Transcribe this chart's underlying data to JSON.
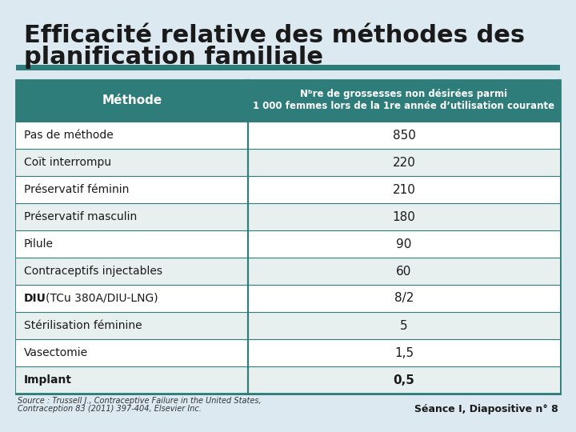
{
  "title_line1": "Efficacité relative des méthodes des",
  "title_line2": "planification familiale",
  "bg_color": "#dce9f0",
  "teal_bar_color": "#2e7d7a",
  "header_bg": "#2e7d7a",
  "header_text_color": "#ffffff",
  "col1_header": "Méthode",
  "col2_header_line1": "Nᵇre de grossesses non désirées parmi",
  "col2_header_line2": "1 000 femmes lors de la 1re année d’utilisation courante",
  "rows": [
    {
      "method": "Pas de méthode",
      "value": "850",
      "bold": false,
      "shaded": false
    },
    {
      "method": "Coït interrompu",
      "value": "220",
      "bold": false,
      "shaded": true
    },
    {
      "method": "Préservatif féminin",
      "value": "210",
      "bold": false,
      "shaded": false
    },
    {
      "method": "Préservatif masculin",
      "value": "180",
      "bold": false,
      "shaded": true
    },
    {
      "method": "Pilule",
      "value": "90",
      "bold": false,
      "shaded": false
    },
    {
      "method": "Contraceptifs injectables",
      "value": "60",
      "bold": false,
      "shaded": true
    },
    {
      "method": "DIU (TCu 380A/DIU-LNG)",
      "value": "8/2",
      "bold": false,
      "shaded": false,
      "diu": true
    },
    {
      "method": "Stérilisation féminine",
      "value": "5",
      "bold": false,
      "shaded": true
    },
    {
      "method": "Vasectomie",
      "value": "1,5",
      "bold": false,
      "shaded": false
    },
    {
      "method": "Implant",
      "value": "0,5",
      "bold": true,
      "shaded": true
    }
  ],
  "row_shaded_color": "#e8f0ef",
  "row_unshaded_color": "#ffffff",
  "border_color": "#2e7d7a",
  "source_text_line1": "Source : Trussell J., Contraceptive Failure in the United States,",
  "source_text_line2": "Contraception 83 (2011) 397-404, Elsevier Inc.",
  "footer_text": "Séance I, Diapositive n° 8",
  "title_color": "#1a1a1a",
  "text_color": "#1a1a1a"
}
